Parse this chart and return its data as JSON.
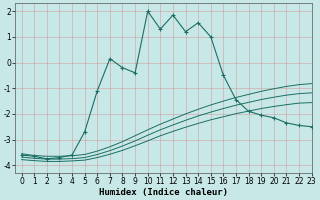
{
  "xlabel": "Humidex (Indice chaleur)",
  "bg_color": "#c8e8e8",
  "grid_color": "#b0c8c8",
  "line_color": "#1a6e64",
  "xlim": [
    -0.5,
    23
  ],
  "ylim": [
    -4.3,
    2.3
  ],
  "xticks": [
    0,
    1,
    2,
    3,
    4,
    5,
    6,
    7,
    8,
    9,
    10,
    11,
    12,
    13,
    14,
    15,
    16,
    17,
    18,
    19,
    20,
    21,
    22,
    23
  ],
  "yticks": [
    -4,
    -3,
    -2,
    -1,
    0,
    1,
    2
  ],
  "main_x": [
    0,
    1,
    2,
    3,
    4,
    5,
    6,
    7,
    8,
    9,
    10,
    11,
    12,
    13,
    14,
    15,
    16,
    17,
    18,
    19,
    20,
    21,
    22,
    23
  ],
  "main_y": [
    -3.6,
    -3.65,
    -3.75,
    -3.7,
    -3.6,
    -2.7,
    -1.1,
    0.15,
    -0.2,
    -0.4,
    2.0,
    1.3,
    1.85,
    1.2,
    1.55,
    1.0,
    -0.5,
    -1.45,
    -1.9,
    -2.05,
    -2.15,
    -2.35,
    -2.45,
    -2.5
  ],
  "line2_x": [
    0,
    1,
    2,
    3,
    4,
    5,
    6,
    7,
    8,
    9,
    10,
    11,
    12,
    13,
    14,
    15,
    16,
    17,
    18,
    19,
    20,
    21,
    22,
    23
  ],
  "line2_y": [
    -3.55,
    -3.62,
    -3.65,
    -3.65,
    -3.63,
    -3.58,
    -3.45,
    -3.28,
    -3.08,
    -2.85,
    -2.62,
    -2.4,
    -2.2,
    -2.0,
    -1.82,
    -1.65,
    -1.5,
    -1.36,
    -1.24,
    -1.12,
    -1.02,
    -0.93,
    -0.86,
    -0.82
  ],
  "line3_x": [
    0,
    1,
    2,
    3,
    4,
    5,
    6,
    7,
    8,
    9,
    10,
    11,
    12,
    13,
    14,
    15,
    16,
    17,
    18,
    19,
    20,
    21,
    22,
    23
  ],
  "line3_y": [
    -3.68,
    -3.73,
    -3.76,
    -3.76,
    -3.74,
    -3.7,
    -3.58,
    -3.43,
    -3.25,
    -3.05,
    -2.83,
    -2.62,
    -2.43,
    -2.25,
    -2.08,
    -1.93,
    -1.79,
    -1.66,
    -1.55,
    -1.44,
    -1.35,
    -1.27,
    -1.21,
    -1.18
  ],
  "line4_x": [
    0,
    1,
    2,
    3,
    4,
    5,
    6,
    7,
    8,
    9,
    10,
    11,
    12,
    13,
    14,
    15,
    16,
    17,
    18,
    19,
    20,
    21,
    22,
    23
  ],
  "line4_y": [
    -3.78,
    -3.82,
    -3.85,
    -3.85,
    -3.83,
    -3.8,
    -3.7,
    -3.57,
    -3.42,
    -3.24,
    -3.05,
    -2.85,
    -2.68,
    -2.52,
    -2.37,
    -2.23,
    -2.11,
    -1.99,
    -1.89,
    -1.79,
    -1.71,
    -1.64,
    -1.58,
    -1.56
  ]
}
